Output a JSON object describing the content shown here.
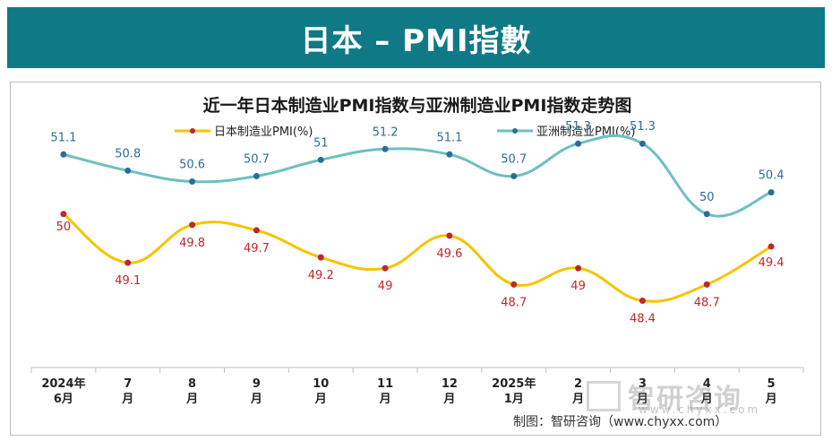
{
  "banner": {
    "title": "日本 – PMI指數"
  },
  "chart_data": {
    "type": "line",
    "title": "近一年日本制造业PMI指数与亚洲制造业PMI指数走势图",
    "categories": [
      [
        "2024年",
        "6月"
      ],
      [
        "7",
        "月"
      ],
      [
        "8",
        "月"
      ],
      [
        "9",
        "月"
      ],
      [
        "10",
        "月"
      ],
      [
        "11",
        "月"
      ],
      [
        "12",
        "月"
      ],
      [
        "2025年",
        "1月"
      ],
      [
        "2",
        "月"
      ],
      [
        "3",
        "月"
      ],
      [
        "4",
        "月"
      ],
      [
        "5",
        "月"
      ]
    ],
    "series": [
      {
        "name": "日本制造业PMI(%)",
        "color": "#f5c400",
        "label_color": "#c0262b",
        "values": [
          50,
          49.1,
          49.8,
          49.7,
          49.2,
          49,
          49.6,
          48.7,
          49,
          48.4,
          48.7,
          49.4
        ]
      },
      {
        "name": "亚洲制造业PMI(%)",
        "color": "#6fbfbd",
        "label_color": "#2a6f93",
        "values": [
          51.1,
          50.8,
          50.6,
          50.7,
          51,
          51.2,
          51.1,
          50.7,
          51.3,
          51.3,
          50,
          50.4
        ]
      }
    ],
    "ylim": [
      47.2,
      51.8
    ],
    "grid": false,
    "legend": "top"
  },
  "watermark": {
    "brand": "智研咨询",
    "url": "www.chyxx.com"
  },
  "credit": "制图：智研咨询（www.chyxx.com）"
}
